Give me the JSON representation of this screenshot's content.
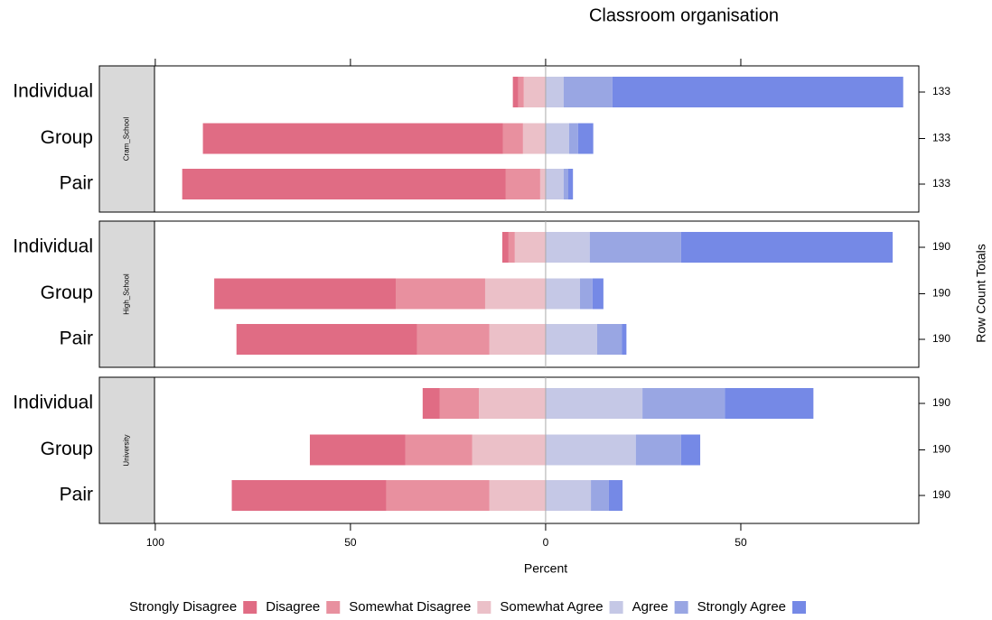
{
  "chart_data": {
    "type": "likert",
    "title": "Classroom organisation",
    "xlabel": "Percent",
    "right_label": "Row Count Totals",
    "xlim": [
      -100.2,
      95.6
    ],
    "xticks": [
      {
        "value": -100,
        "label": "100"
      },
      {
        "value": -50,
        "label": "50"
      },
      0,
      50
    ],
    "series": [
      {
        "name": "Strongly Disagree",
        "color": "#e06c84",
        "side": "left"
      },
      {
        "name": "Disagree",
        "color": "#e8909f",
        "side": "left"
      },
      {
        "name": "Somewhat Disagree",
        "color": "#ebc0c8",
        "side": "left"
      },
      {
        "name": "Somewhat Agree",
        "color": "#c5c8e6",
        "side": "right"
      },
      {
        "name": "Agree",
        "color": "#99a6e3",
        "side": "right"
      },
      {
        "name": "Strongly Agree",
        "color": "#7589e6",
        "side": "right"
      }
    ],
    "panels": [
      {
        "strip": "Cram_School",
        "categories": [
          "Individual",
          "Group",
          "Pair"
        ],
        "row_totals": [
          133,
          133,
          133
        ],
        "values": [
          [
            1.4,
            1.4,
            5.6,
            4.6,
            12.5,
            74.5
          ],
          [
            76.9,
            5.1,
            5.8,
            6.0,
            2.3,
            3.9
          ],
          [
            82.9,
            8.8,
            1.4,
            4.6,
            1.2,
            1.2
          ]
        ]
      },
      {
        "strip": "High_School",
        "categories": [
          "Individual",
          "Group",
          "Pair"
        ],
        "row_totals": [
          190,
          190,
          190
        ],
        "values": [
          [
            1.6,
            1.6,
            7.9,
            11.3,
            23.4,
            54.2
          ],
          [
            46.5,
            22.9,
            15.5,
            8.8,
            3.2,
            2.8
          ],
          [
            46.3,
            18.5,
            14.4,
            13.2,
            6.3,
            1.2
          ]
        ]
      },
      {
        "strip": "University",
        "categories": [
          "Individual",
          "Group",
          "Pair"
        ],
        "row_totals": [
          190,
          190,
          190
        ],
        "values": [
          [
            4.4,
            10.0,
            17.1,
            24.8,
            21.1,
            22.7
          ],
          [
            24.5,
            17.1,
            18.8,
            23.1,
            11.6,
            4.9
          ],
          [
            39.6,
            26.4,
            14.4,
            11.6,
            4.6,
            3.5
          ]
        ]
      }
    ]
  }
}
